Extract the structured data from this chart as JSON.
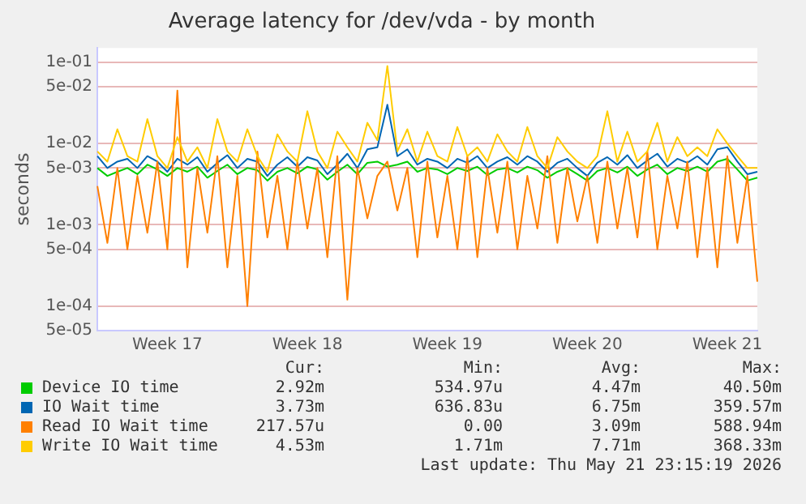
{
  "chart_data": {
    "type": "line",
    "title": "Average latency for /dev/vda - by month",
    "ylabel": "seconds",
    "categories": [
      null,
      null,
      null,
      null,
      null,
      null,
      null,
      "Week 17",
      null,
      null,
      null,
      null,
      null,
      null,
      null,
      null,
      null,
      null,
      null,
      null,
      null,
      "Week 18",
      null,
      null,
      null,
      null,
      null,
      null,
      null,
      null,
      null,
      null,
      null,
      null,
      null,
      "Week 19",
      null,
      null,
      null,
      null,
      null,
      null,
      null,
      null,
      null,
      null,
      null,
      null,
      null,
      "Week 20",
      null,
      null,
      null,
      null,
      null,
      null,
      null,
      null,
      null,
      null,
      null,
      null,
      null,
      "Week 21",
      null,
      null,
      null
    ],
    "series": [
      {
        "name": "Device IO time",
        "color": "#00cc00",
        "values": [
          0.005,
          0.004,
          0.0045,
          0.005,
          0.0042,
          0.0055,
          0.0048,
          0.004,
          0.005,
          0.0045,
          0.0052,
          0.0038,
          0.0046,
          0.0055,
          0.0042,
          0.005,
          0.0047,
          0.0035,
          0.0045,
          0.005,
          0.0043,
          0.0052,
          0.0048,
          0.0036,
          0.0045,
          0.0055,
          0.0042,
          0.0058,
          0.006,
          0.0052,
          0.0055,
          0.006,
          0.0045,
          0.005,
          0.0048,
          0.0042,
          0.005,
          0.0046,
          0.0052,
          0.0041,
          0.0048,
          0.005,
          0.0044,
          0.0052,
          0.0047,
          0.0038,
          0.0045,
          0.005,
          0.0042,
          0.0035,
          0.0046,
          0.005,
          0.0044,
          0.0052,
          0.004,
          0.0048,
          0.0055,
          0.0042,
          0.005,
          0.0046,
          0.0052,
          0.0045,
          0.006,
          0.0065,
          0.0048,
          0.0035,
          0.0038
        ]
      },
      {
        "name": "IO Wait time",
        "color": "#0066b3",
        "values": [
          0.007,
          0.005,
          0.006,
          0.0065,
          0.005,
          0.007,
          0.006,
          0.0045,
          0.0065,
          0.0055,
          0.0068,
          0.0045,
          0.0058,
          0.0072,
          0.005,
          0.0065,
          0.006,
          0.004,
          0.0055,
          0.0068,
          0.0052,
          0.0068,
          0.0062,
          0.0042,
          0.0055,
          0.0075,
          0.005,
          0.0085,
          0.009,
          0.03,
          0.007,
          0.0085,
          0.0055,
          0.0065,
          0.006,
          0.005,
          0.0065,
          0.0058,
          0.007,
          0.005,
          0.006,
          0.0068,
          0.0055,
          0.007,
          0.006,
          0.0045,
          0.0058,
          0.0065,
          0.005,
          0.004,
          0.0058,
          0.0068,
          0.0055,
          0.0072,
          0.005,
          0.0062,
          0.0075,
          0.0052,
          0.0065,
          0.0058,
          0.007,
          0.0055,
          0.0085,
          0.009,
          0.006,
          0.0042,
          0.0045
        ]
      },
      {
        "name": "Read IO Wait time",
        "color": "#ff8000",
        "values": [
          0.003,
          0.0006,
          0.005,
          0.0005,
          0.004,
          0.0008,
          0.006,
          0.0005,
          0.045,
          0.0003,
          0.005,
          0.0008,
          0.007,
          0.0003,
          0.004,
          0.0001,
          0.008,
          0.0007,
          0.004,
          0.0005,
          0.006,
          0.0009,
          0.005,
          0.0004,
          0.007,
          0.00012,
          0.005,
          0.0012,
          0.004,
          0.006,
          0.0015,
          0.005,
          0.0004,
          0.006,
          0.0007,
          0.004,
          0.0005,
          0.007,
          0.0004,
          0.005,
          0.0008,
          0.006,
          0.0005,
          0.004,
          0.0009,
          0.007,
          0.0006,
          0.005,
          0.0011,
          0.004,
          0.0006,
          0.006,
          0.0009,
          0.005,
          0.0007,
          0.008,
          0.0005,
          0.004,
          0.0009,
          0.006,
          0.0004,
          0.005,
          0.0003,
          0.007,
          0.0006,
          0.004,
          0.0002
        ]
      },
      {
        "name": "Write IO Wait time",
        "color": "#ffcc00",
        "values": [
          0.008,
          0.006,
          0.015,
          0.007,
          0.006,
          0.02,
          0.007,
          0.005,
          0.012,
          0.006,
          0.009,
          0.005,
          0.02,
          0.008,
          0.006,
          0.015,
          0.007,
          0.0045,
          0.013,
          0.008,
          0.006,
          0.025,
          0.008,
          0.005,
          0.014,
          0.009,
          0.006,
          0.018,
          0.011,
          0.09,
          0.008,
          0.015,
          0.006,
          0.014,
          0.007,
          0.006,
          0.016,
          0.007,
          0.009,
          0.006,
          0.013,
          0.008,
          0.006,
          0.016,
          0.007,
          0.005,
          0.012,
          0.008,
          0.006,
          0.005,
          0.007,
          0.025,
          0.006,
          0.014,
          0.006,
          0.008,
          0.018,
          0.006,
          0.012,
          0.007,
          0.009,
          0.007,
          0.015,
          0.01,
          0.007,
          0.005,
          0.005
        ]
      }
    ],
    "ylim": [
      5e-05,
      0.15
    ],
    "yticks": [
      {
        "value": 5e-05,
        "label": "5e-05"
      },
      {
        "value": 0.0001,
        "label": "1e-04"
      },
      {
        "value": 0.0005,
        "label": "5e-04"
      },
      {
        "value": 0.001,
        "label": "1e-03"
      },
      {
        "value": 0.005,
        "label": "5e-03"
      },
      {
        "value": 0.01,
        "label": "1e-02"
      },
      {
        "value": 0.05,
        "label": "5e-02"
      },
      {
        "value": 0.1,
        "label": "1e-01"
      }
    ],
    "log": "y",
    "grid": "y",
    "legend": "bottom",
    "marker": "none",
    "line_style": "solid",
    "annotations": [
      "Cur:",
      "Min:",
      "Avg:",
      "Max:",
      "2.92m",
      "534.97u",
      "4.47m",
      "40.50m",
      "3.73m",
      "636.83u",
      "6.75m",
      "359.57m",
      "217.57u",
      "0.00",
      "3.09m",
      "588.94m",
      "4.53m",
      "1.71m",
      "7.71m",
      "368.33m",
      "Last update: Thu May 21 23:15:19 2026"
    ]
  }
}
